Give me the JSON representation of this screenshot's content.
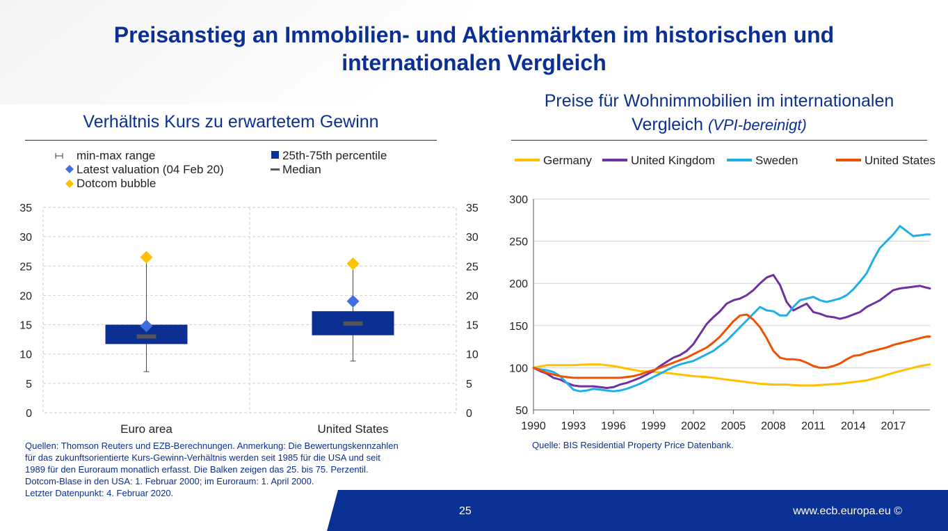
{
  "slide": {
    "title_line1": "Preisanstieg an Immobilien- und Aktienmärkten im historischen und",
    "title_line2": "internationalen Vergleich",
    "page_number": "25",
    "footer_url": "www.ecb.europa.eu ©",
    "colors": {
      "brand_blue": "#0b2f93",
      "footer_blue": "#0a3196"
    }
  },
  "left_panel": {
    "subtitle": "Verhältnis Kurs zu erwartetem Gewinn",
    "legend": {
      "range": "min-max range",
      "percentile": "25th-75th percentile",
      "latest": "Latest valuation (04 Feb 20)",
      "median": "Median",
      "dotcom": "Dotcom bubble"
    },
    "notes": [
      "Quellen: Thomson Reuters und EZB-Berechnungen. Anmerkung: Die Bewertungskennzahlen",
      "für das zukunftsorientierte Kurs-Gewinn-Verhältnis werden seit 1985 für die USA und seit",
      "1989 für den Euroraum monatlich erfasst. Die Balken zeigen das 25. bis 75. Perzentil.",
      "Dotcom-Blase in den USA: 1. Februar 2000; im Euroraum: 1. April 2000.",
      "Letzter Datenpunkt: 4. Februar 2020."
    ]
  },
  "right_panel": {
    "subtitle_line1": "Preise für Wohnimmobilien im internationalen",
    "subtitle_line2": "Vergleich",
    "subtitle_italic": "(VPI-bereinigt)",
    "source": "Quelle: BIS Residential Property Price Datenbank."
  },
  "chart_data": [
    {
      "type": "box",
      "title": "Verhältnis Kurs zu erwartetem Gewinn",
      "categories": [
        "Euro area",
        "United States"
      ],
      "ylim": [
        0,
        35
      ],
      "yticks": [
        "0",
        "5",
        "10",
        "15",
        "20",
        "25",
        "30",
        "35"
      ],
      "grid": true,
      "legend_position": "top",
      "colors": {
        "box": "#0b2f93",
        "median": "#555555",
        "latest": "#3d6fe0",
        "dotcom": "#ffc000"
      },
      "series": [
        {
          "category": "Euro area",
          "min": 7.0,
          "q1": 11.7,
          "median": 13.0,
          "q3": 15.0,
          "max": 26.5,
          "latest": 14.8,
          "dotcom": 26.5
        },
        {
          "category": "United States",
          "min": 8.8,
          "q1": 13.2,
          "median": 15.2,
          "q3": 17.3,
          "max": 25.4,
          "latest": 19.0,
          "dotcom": 25.4
        }
      ]
    },
    {
      "type": "line",
      "title": "Preise für Wohnimmobilien im internationalen Vergleich (VPI-bereinigt)",
      "xlim": [
        1990,
        2019.75
      ],
      "ylim": [
        50,
        300
      ],
      "xticks": [
        "1990",
        "1993",
        "1996",
        "1999",
        "2002",
        "2005",
        "2008",
        "2011",
        "2014",
        "2017"
      ],
      "yticks": [
        "50",
        "100",
        "150",
        "200",
        "250",
        "300"
      ],
      "grid": true,
      "legend_position": "top",
      "series": [
        {
          "name": "Germany",
          "color": "#ffc000",
          "x": [
            1990,
            1991,
            1992,
            1993,
            1994,
            1995,
            1996,
            1997,
            1998,
            1999,
            2000,
            2001,
            2002,
            2003,
            2004,
            2005,
            2006,
            2007,
            2008,
            2009,
            2010,
            2011,
            2012,
            2013,
            2014,
            2015,
            2016,
            2017,
            2018,
            2019,
            2019.75
          ],
          "y": [
            100,
            103,
            103,
            103,
            104,
            104,
            102,
            99,
            96,
            95,
            94,
            92,
            90,
            89,
            87,
            85,
            83,
            81,
            80,
            80,
            79,
            79,
            80,
            81,
            83,
            85,
            89,
            94,
            98,
            102,
            104
          ]
        },
        {
          "name": "United Kingdom",
          "color": "#7030a0",
          "x": [
            1990,
            1990.5,
            1991,
            1991.5,
            1992,
            1992.5,
            1993,
            1993.5,
            1994,
            1994.5,
            1995,
            1995.5,
            1996,
            1996.5,
            1997,
            1997.5,
            1998,
            1998.5,
            1999,
            1999.5,
            2000,
            2000.5,
            2001,
            2001.5,
            2002,
            2002.5,
            2003,
            2003.5,
            2004,
            2004.5,
            2005,
            2005.5,
            2006,
            2006.5,
            2007,
            2007.5,
            2008,
            2008.5,
            2009,
            2009.5,
            2010,
            2010.5,
            2011,
            2011.5,
            2012,
            2012.5,
            2013,
            2013.5,
            2014,
            2014.5,
            2015,
            2015.5,
            2016,
            2016.5,
            2017,
            2017.5,
            2018,
            2018.5,
            2019,
            2019.5,
            2019.75
          ],
          "y": [
            100,
            96,
            93,
            88,
            86,
            82,
            79,
            78,
            78,
            78,
            77,
            76,
            77,
            80,
            82,
            85,
            88,
            92,
            96,
            102,
            107,
            112,
            115,
            120,
            128,
            140,
            152,
            160,
            167,
            176,
            180,
            182,
            186,
            192,
            200,
            207,
            210,
            198,
            178,
            168,
            172,
            176,
            166,
            164,
            161,
            160,
            158,
            160,
            163,
            166,
            172,
            176,
            180,
            186,
            192,
            194,
            195,
            196,
            197,
            195,
            194
          ]
        },
        {
          "name": "Sweden",
          "color": "#1fafe8",
          "x": [
            1990,
            1990.5,
            1991,
            1991.5,
            1992,
            1992.5,
            1993,
            1993.5,
            1994,
            1994.5,
            1995,
            1995.5,
            1996,
            1996.5,
            1997,
            1997.5,
            1998,
            1998.5,
            1999,
            1999.5,
            2000,
            2000.5,
            2001,
            2001.5,
            2002,
            2002.5,
            2003,
            2003.5,
            2004,
            2004.5,
            2005,
            2005.5,
            2006,
            2006.5,
            2007,
            2007.5,
            2008,
            2008.5,
            2009,
            2009.5,
            2010,
            2010.5,
            2011,
            2011.5,
            2012,
            2012.5,
            2013,
            2013.5,
            2014,
            2014.5,
            2015,
            2015.5,
            2016,
            2016.5,
            2017,
            2017.5,
            2018,
            2018.5,
            2019,
            2019.5,
            2019.75
          ],
          "y": [
            100,
            98,
            97,
            95,
            90,
            82,
            74,
            72,
            73,
            75,
            74,
            73,
            72,
            73,
            75,
            78,
            81,
            85,
            89,
            93,
            97,
            101,
            104,
            106,
            108,
            112,
            116,
            120,
            126,
            132,
            140,
            148,
            156,
            164,
            172,
            168,
            167,
            162,
            162,
            172,
            180,
            182,
            184,
            180,
            178,
            180,
            182,
            186,
            193,
            202,
            212,
            228,
            242,
            250,
            258,
            268,
            262,
            256,
            257,
            258,
            258
          ]
        },
        {
          "name": "United States",
          "color": "#f05000",
          "x": [
            1990,
            1990.5,
            1991,
            1991.5,
            1992,
            1992.5,
            1993,
            1993.5,
            1994,
            1994.5,
            1995,
            1995.5,
            1996,
            1996.5,
            1997,
            1997.5,
            1998,
            1998.5,
            1999,
            1999.5,
            2000,
            2000.5,
            2001,
            2001.5,
            2002,
            2002.5,
            2003,
            2003.5,
            2004,
            2004.5,
            2005,
            2005.5,
            2006,
            2006.5,
            2007,
            2007.5,
            2008,
            2008.5,
            2009,
            2009.5,
            2010,
            2010.5,
            2011,
            2011.5,
            2012,
            2012.5,
            2013,
            2013.5,
            2014,
            2014.5,
            2015,
            2015.5,
            2016,
            2016.5,
            2017,
            2017.5,
            2018,
            2018.5,
            2019,
            2019.5,
            2019.75
          ],
          "y": [
            100,
            97,
            94,
            92,
            90,
            89,
            88,
            88,
            88,
            88,
            88,
            88,
            88,
            88,
            89,
            90,
            92,
            95,
            97,
            100,
            103,
            106,
            109,
            112,
            116,
            120,
            124,
            130,
            137,
            146,
            155,
            162,
            163,
            157,
            148,
            135,
            120,
            112,
            110,
            110,
            109,
            106,
            102,
            100,
            100,
            102,
            105,
            110,
            114,
            115,
            118,
            120,
            122,
            124,
            127,
            129,
            131,
            133,
            135,
            137,
            137
          ]
        }
      ]
    }
  ]
}
